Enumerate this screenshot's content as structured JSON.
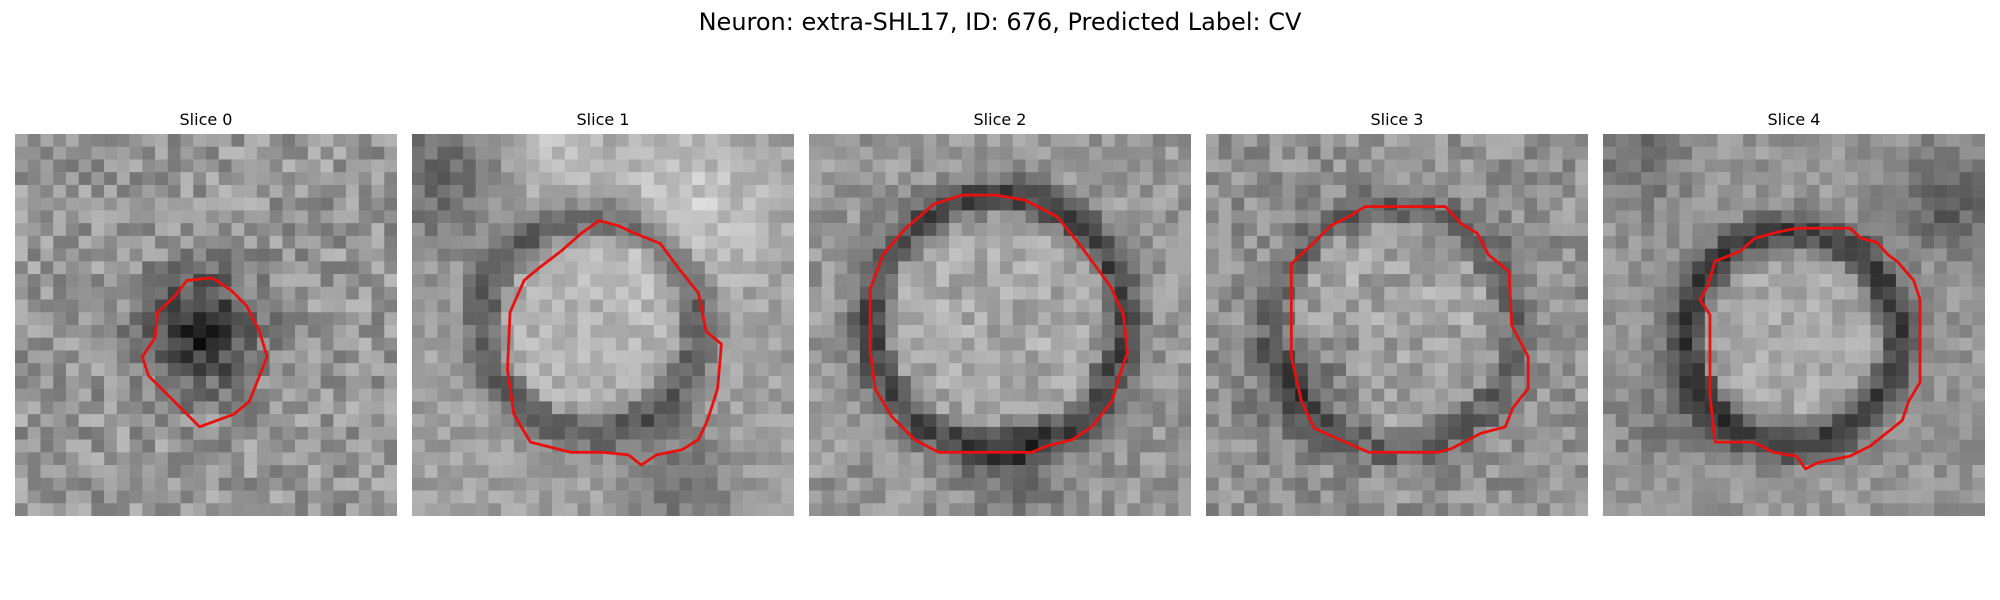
{
  "figure": {
    "title": "Neuron: extra-SHL17, ID: 676, Predicted Label: CV",
    "contour_color": "#e8110f",
    "colormap": "gray",
    "slices": [
      {
        "title": "Slice 0",
        "pattern": "dark-blob"
      },
      {
        "title": "Slice 1",
        "pattern": "dark-ring-bright-surround"
      },
      {
        "title": "Slice 2",
        "pattern": "dark-ring"
      },
      {
        "title": "Slice 3",
        "pattern": "dark-ring-faint"
      },
      {
        "title": "Slice 4",
        "pattern": "dark-ring-dark-surround"
      }
    ]
  }
}
